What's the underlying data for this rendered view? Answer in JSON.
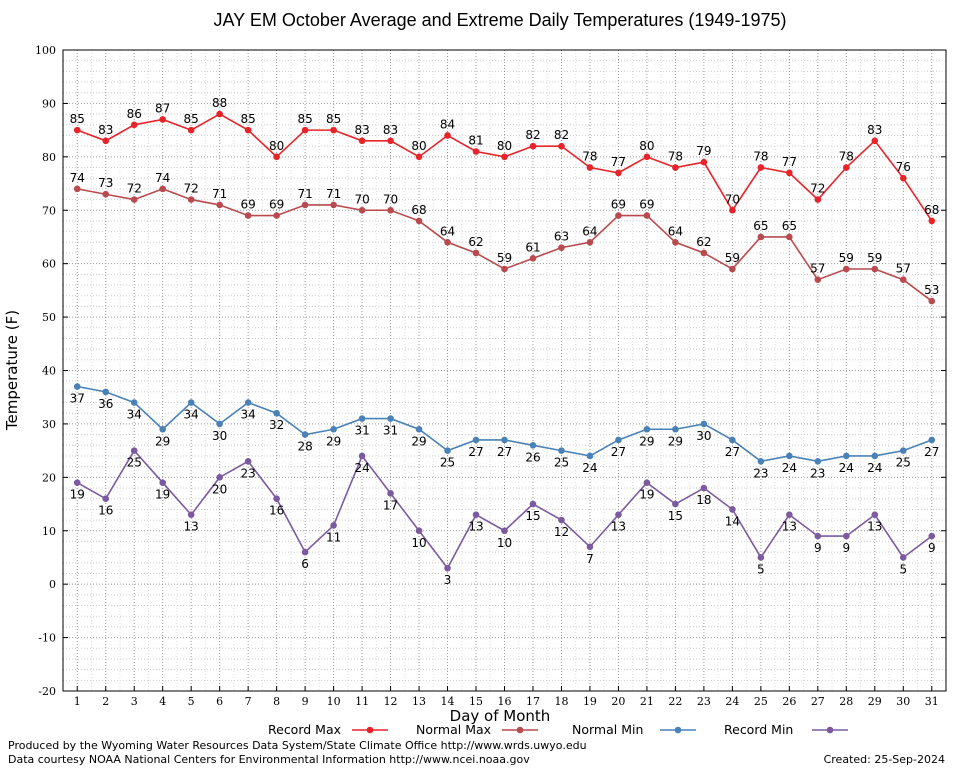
{
  "chart_data": {
    "type": "line",
    "title": "JAY EM October Average and Extreme Daily Temperatures (1949-1975)",
    "xlabel": "Day of Month",
    "ylabel": "Temperature (F)",
    "ylim": [
      -20,
      100
    ],
    "yticks": [
      -20,
      -10,
      0,
      10,
      20,
      30,
      40,
      50,
      60,
      70,
      80,
      90,
      100
    ],
    "x": [
      1,
      2,
      3,
      4,
      5,
      6,
      7,
      8,
      9,
      10,
      11,
      12,
      13,
      14,
      15,
      16,
      17,
      18,
      19,
      20,
      21,
      22,
      23,
      24,
      25,
      26,
      27,
      28,
      29,
      30,
      31
    ],
    "grid": true,
    "legend_position": "bottom",
    "series": [
      {
        "name": "Record Max",
        "color": "#e8242a",
        "label_position": "above",
        "values": [
          85,
          83,
          86,
          87,
          85,
          88,
          85,
          80,
          85,
          85,
          83,
          83,
          80,
          84,
          81,
          80,
          82,
          82,
          78,
          77,
          80,
          78,
          79,
          70,
          78,
          77,
          72,
          78,
          83,
          76,
          68
        ]
      },
      {
        "name": "Normal Max",
        "color": "#b94a4e",
        "label_position": "above",
        "values": [
          74,
          73,
          72,
          74,
          72,
          71,
          69,
          69,
          71,
          71,
          70,
          70,
          68,
          64,
          62,
          59,
          61,
          63,
          64,
          69,
          69,
          64,
          62,
          59,
          65,
          65,
          57,
          59,
          59,
          57,
          53
        ]
      },
      {
        "name": "Normal Min",
        "color": "#4a82b8",
        "label_position": "below",
        "values": [
          37,
          36,
          34,
          29,
          34,
          30,
          34,
          32,
          28,
          29,
          31,
          31,
          29,
          25,
          27,
          27,
          26,
          25,
          24,
          27,
          29,
          29,
          30,
          27,
          23,
          24,
          23,
          24,
          24,
          25,
          27
        ]
      },
      {
        "name": "Record Min",
        "color": "#7b5aa0",
        "label_position": "below",
        "values": [
          19,
          16,
          25,
          19,
          13,
          20,
          23,
          16,
          6,
          11,
          24,
          17,
          10,
          3,
          13,
          10,
          15,
          12,
          7,
          13,
          19,
          15,
          18,
          14,
          5,
          13,
          9,
          9,
          13,
          5,
          9
        ]
      }
    ]
  },
  "footer": {
    "produced_by": "Produced by the Wyoming Water Resources Data System/State Climate Office http://www.wrds.uwyo.edu",
    "courtesy": "Data courtesy NOAA National Centers for Environmental Information http://www.ncei.noaa.gov",
    "created": "Created:  25-Sep-2024"
  }
}
